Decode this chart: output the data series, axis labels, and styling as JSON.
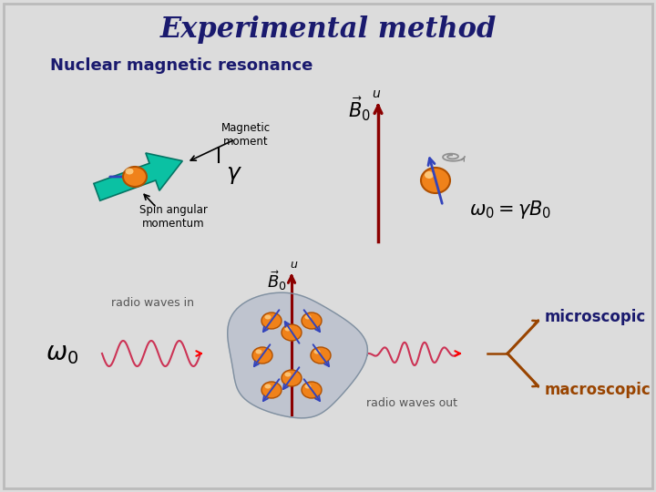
{
  "title": "Experimental method",
  "subtitle": "Nuclear magnetic resonance",
  "bg_color": "#dcdcdc",
  "title_color": "#1a1a6e",
  "subtitle_color": "#1a1a6e",
  "label_magnetic_moment": "Magnetic\nmoment",
  "label_spin_angular": "Spin angular\nmomentum",
  "label_radio_in": "radio waves in",
  "label_radio_out": "radio waves out",
  "label_microscopic": "microscopic",
  "label_macroscopic": "macroscopic",
  "orange_color": "#f0821a",
  "teal_color": "#00c0a0",
  "dark_red": "#8b0000",
  "blue_arrow": "#3344bb",
  "pink_wave": "#cc3355",
  "brown_label": "#994400",
  "gray_blob": "#b0b8c8"
}
